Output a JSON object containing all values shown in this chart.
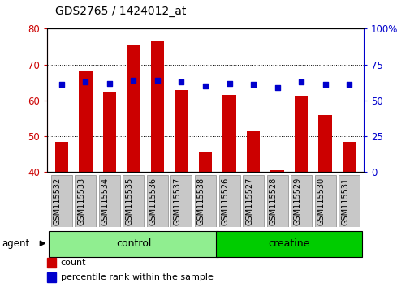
{
  "title": "GDS2765 / 1424012_at",
  "categories": [
    "GSM115532",
    "GSM115533",
    "GSM115534",
    "GSM115535",
    "GSM115536",
    "GSM115537",
    "GSM115538",
    "GSM115526",
    "GSM115527",
    "GSM115528",
    "GSM115529",
    "GSM115530",
    "GSM115531"
  ],
  "count_values": [
    48.5,
    68.0,
    62.5,
    75.5,
    76.5,
    63.0,
    45.5,
    61.5,
    51.5,
    40.5,
    61.0,
    56.0,
    48.5
  ],
  "percentile_values": [
    61,
    63,
    62,
    64,
    64,
    63,
    60,
    62,
    61,
    59,
    63,
    61,
    61
  ],
  "ylim_left": [
    40,
    80
  ],
  "ylim_right": [
    0,
    100
  ],
  "yticks_left": [
    40,
    50,
    60,
    70,
    80
  ],
  "yticks_right": [
    0,
    25,
    50,
    75,
    100
  ],
  "yticklabels_right": [
    "0",
    "25",
    "50",
    "75",
    "100%"
  ],
  "bar_color": "#CC0000",
  "dot_color": "#0000CC",
  "group_info": [
    {
      "label": "control",
      "start": 0,
      "end": 6,
      "color": "#90EE90"
    },
    {
      "label": "creatine",
      "start": 7,
      "end": 12,
      "color": "#00CC00"
    }
  ],
  "agent_label": "agent",
  "legend_items": [
    {
      "label": "count",
      "color": "#CC0000"
    },
    {
      "label": "percentile rank within the sample",
      "color": "#0000CC"
    }
  ],
  "grid_linestyle": ":",
  "tick_label_color_left": "#CC0000",
  "tick_label_color_right": "#0000CC",
  "bar_width": 0.55,
  "dot_size": 18,
  "xlabel_box_color": "#C8C8C8",
  "xlabel_box_edge_color": "#888888"
}
